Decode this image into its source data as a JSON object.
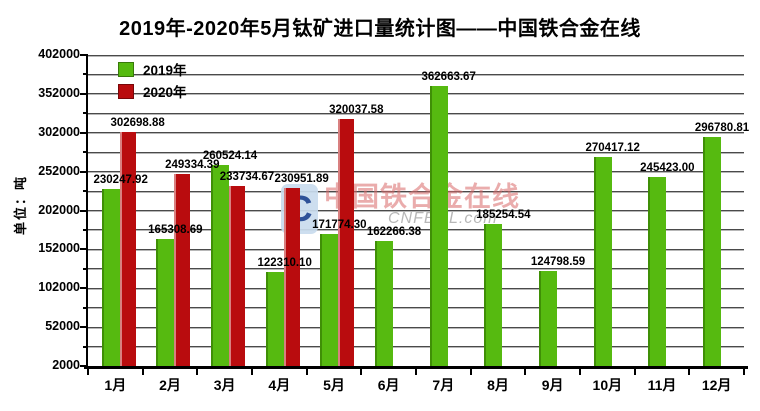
{
  "title": "2019年-2020年5月钛矿进口量统计图——中国铁合金在线",
  "watermark": {
    "logo_letter": "C",
    "brand": "中国铁合金在线",
    "domain": "CNFEOL.com"
  },
  "chart_data": {
    "type": "bar",
    "title": "2019年-2020年5月钛矿进口量统计图——中国铁合金在线",
    "ylabel": "单位：吨",
    "categories": [
      "1月",
      "2月",
      "3月",
      "4月",
      "5月",
      "6月",
      "7月",
      "8月",
      "9月",
      "10月",
      "11月",
      "12月"
    ],
    "series": [
      {
        "name": "2019年",
        "color": "#56BA10",
        "values": [
          "230247.92",
          "165308.69",
          "260524.14",
          "122310.10",
          "171774.30",
          "162266.38",
          "362663.67",
          "185254.54",
          "124798.59",
          "270417.12",
          "245423.00",
          "296780.81"
        ]
      },
      {
        "name": "2020年",
        "color": "#B90C0E",
        "values": [
          "302698.88",
          "249334.39",
          "233734.67",
          "230951.89",
          "320037.58",
          null,
          null,
          null,
          null,
          null,
          null,
          null
        ]
      }
    ],
    "ylim": [
      2000,
      402000
    ],
    "ytick_labels": [
      "402000",
      "352000",
      "302000",
      "252000",
      "202000",
      "152000",
      "102000",
      "52000",
      "2000"
    ],
    "major_tick_step": 50000,
    "minor_grid_step": 25000,
    "grid": true,
    "legend_position": "top-left"
  }
}
